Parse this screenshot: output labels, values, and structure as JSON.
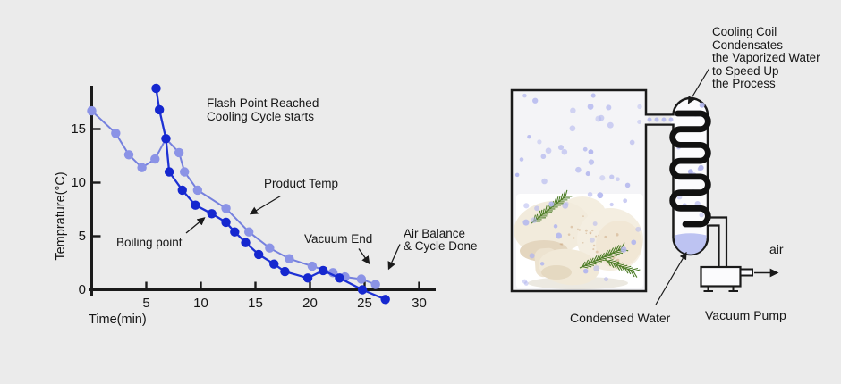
{
  "background": "#ebebeb",
  "colors": {
    "axis": "#1a1a1a",
    "text": "#161616",
    "light_line": "#7580de",
    "light_marker": "#8b93e6",
    "dark_line": "#1d31d4",
    "dark_marker": "#1527cf",
    "vapor_dot": "#b2b6ee",
    "water": "#bdc3f2",
    "outline": "#1a1a1a",
    "chamber_fill": "#f4f4f7",
    "capsule_fill": "#fbfbfd",
    "coil": "#111111"
  },
  "chart": {
    "y_axis_label": "Temprature(°C)",
    "x_axis_label": "Time(min)",
    "y_ticks": [
      15,
      10,
      5,
      0
    ],
    "x_ticks": [
      5,
      10,
      15,
      20,
      25,
      30
    ],
    "annotations": {
      "flash_line1": "Flash Point Reached",
      "flash_line2": "Cooling Cycle starts",
      "product_temp": "Product Temp",
      "boiling_point": "Boiling point",
      "vacuum_end": "Vacuum End",
      "air_balance_line1": "Air Balance",
      "air_balance_line2": "& Cycle Done"
    }
  },
  "chart_data": {
    "type": "line",
    "title": "",
    "xlabel": "Time(min)",
    "ylabel": "Temprature(°C)",
    "xlim": [
      0,
      31.5
    ],
    "ylim": [
      -1,
      19
    ],
    "grid": false,
    "legend": "none (series identified by arrow annotations)",
    "series": [
      {
        "id": "product-temp",
        "name": "Product Temp",
        "points": [
          [
            0,
            16.7
          ],
          [
            2.2,
            14.6
          ],
          [
            3.4,
            12.6
          ],
          [
            4.6,
            11.4
          ],
          [
            5.8,
            12.2
          ],
          [
            6.8,
            14.1
          ],
          [
            8.0,
            12.8
          ],
          [
            8.5,
            11.0
          ],
          [
            9.7,
            9.3
          ],
          [
            12.3,
            7.6
          ],
          [
            14.4,
            5.4
          ],
          [
            16.3,
            3.9
          ],
          [
            18.1,
            2.9
          ],
          [
            20.2,
            2.2
          ],
          [
            22.1,
            1.6
          ],
          [
            23.2,
            1.2
          ],
          [
            24.7,
            1.0
          ],
          [
            26.0,
            0.5
          ]
        ]
      },
      {
        "id": "chamber-temp",
        "name": "unlabeled (dark blue, starts at flash point)",
        "points": [
          [
            5.9,
            18.8
          ],
          [
            6.2,
            16.8
          ],
          [
            6.8,
            14.1
          ],
          [
            7.1,
            11.0
          ],
          [
            8.3,
            9.3
          ],
          [
            9.5,
            7.9
          ],
          [
            11.0,
            7.1
          ],
          [
            12.3,
            6.3
          ],
          [
            13.1,
            5.4
          ],
          [
            14.1,
            4.4
          ],
          [
            15.3,
            3.3
          ],
          [
            16.7,
            2.4
          ],
          [
            17.7,
            1.7
          ],
          [
            19.8,
            1.1
          ],
          [
            21.2,
            1.8
          ],
          [
            22.7,
            1.1
          ],
          [
            24.8,
            0.0
          ],
          [
            26.9,
            -0.9
          ]
        ]
      }
    ],
    "annotations": [
      "Flash Point Reached Cooling Cycle starts",
      "Product Temp",
      "Boiling point",
      "Vacuum End",
      "Air Balance & Cycle Done"
    ]
  },
  "diagram": {
    "labels": {
      "cooling_coil_lines": [
        "Cooling Coil",
        "Condensates",
        "the Vaporized Water",
        "to Speed Up",
        "the Process"
      ],
      "condensed_water": "Condensed Water",
      "vacuum_pump": "Vacuum Pump",
      "air": "air"
    }
  }
}
